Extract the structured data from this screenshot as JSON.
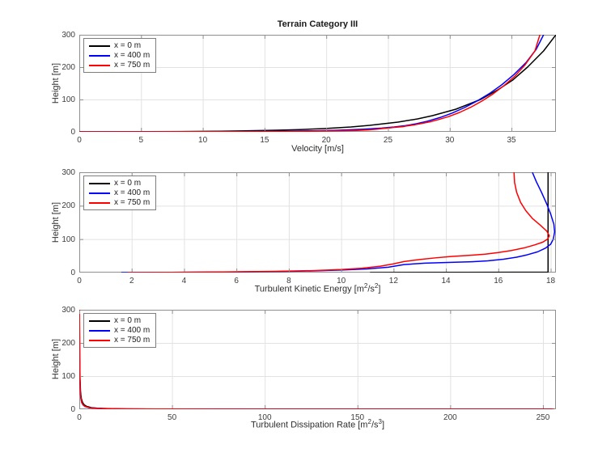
{
  "figure_title": "Terrain Category III",
  "chart_data": [
    {
      "id": "velocity-profile",
      "type": "line",
      "title": "Terrain Category III",
      "xlabel": "Velocity [m/s]",
      "ylabel": "Height [m]",
      "xlim": [
        0,
        38.6
      ],
      "ylim": [
        0,
        300
      ],
      "xticks": [
        0,
        5,
        10,
        15,
        20,
        25,
        30,
        35
      ],
      "yticks": [
        0,
        100,
        200,
        300
      ],
      "grid": true,
      "legend_position": "top-left",
      "series": [
        {
          "name": "x = 0 m",
          "color": "#000000",
          "points": [
            [
              0,
              0
            ],
            [
              2,
              0.13
            ],
            [
              5.5,
              0.5
            ],
            [
              8.2,
              1
            ],
            [
              11.4,
              2
            ],
            [
              13.4,
              3
            ],
            [
              16,
              5
            ],
            [
              17.8,
              7
            ],
            [
              19.8,
              10
            ],
            [
              22,
              15
            ],
            [
              23.5,
              20
            ],
            [
              25.8,
              30
            ],
            [
              27.4,
              40
            ],
            [
              28.6,
              50
            ],
            [
              30.5,
              70
            ],
            [
              32.5,
              100
            ],
            [
              33.9,
              130
            ],
            [
              35.1,
              160
            ],
            [
              36.3,
              200
            ],
            [
              37.6,
              250
            ],
            [
              38.6,
              300
            ]
          ]
        },
        {
          "name": "x = 400 m",
          "color": "#0000ff",
          "points": [
            [
              0,
              0
            ],
            [
              6,
              0.2
            ],
            [
              12,
              0.8
            ],
            [
              16,
              1.8
            ],
            [
              19,
              3.2
            ],
            [
              21,
              5
            ],
            [
              23,
              8
            ],
            [
              24.5,
              11.5
            ],
            [
              25.5,
              15
            ],
            [
              26.4,
              19
            ],
            [
              27.3,
              25
            ],
            [
              28.2,
              33
            ],
            [
              29.2,
              44
            ],
            [
              30.2,
              58
            ],
            [
              31.2,
              75
            ],
            [
              32.2,
              95
            ],
            [
              33.2,
              118
            ],
            [
              34.2,
              145
            ],
            [
              35.2,
              177
            ],
            [
              36.2,
              215
            ],
            [
              37.0,
              255
            ],
            [
              37.6,
              300
            ]
          ]
        },
        {
          "name": "x = 750 m",
          "color": "#ff0000",
          "points": [
            [
              0,
              0
            ],
            [
              7,
              0.2
            ],
            [
              14,
              0.8
            ],
            [
              18,
              1.6
            ],
            [
              21,
              3
            ],
            [
              22.5,
              4.5
            ],
            [
              23.4,
              6
            ],
            [
              24.1,
              8
            ],
            [
              24.5,
              10
            ],
            [
              25.1,
              12
            ],
            [
              25.4,
              13.5
            ],
            [
              26.2,
              16
            ],
            [
              26.5,
              18
            ],
            [
              27.2,
              22
            ],
            [
              27.6,
              25
            ],
            [
              28.4,
              31
            ],
            [
              29.1,
              38
            ],
            [
              29.9,
              47
            ],
            [
              30.8,
              60
            ],
            [
              31.7,
              76
            ],
            [
              32.6,
              95
            ],
            [
              33.5,
              117
            ],
            [
              34.4,
              143
            ],
            [
              35.3,
              173
            ],
            [
              36.1,
              207
            ],
            [
              36.9,
              250
            ],
            [
              37.3,
              300
            ]
          ]
        }
      ]
    },
    {
      "id": "turbulent-kinetic-energy-profile",
      "type": "line",
      "title": "",
      "xlabel": "Turbulent Kinetic Energy [m^2/s^2]",
      "ylabel": "Height [m]",
      "xlim": [
        0,
        18.2
      ],
      "ylim": [
        0,
        300
      ],
      "xticks": [
        0,
        2,
        4,
        6,
        8,
        10,
        12,
        14,
        16,
        18
      ],
      "yticks": [
        0,
        100,
        200,
        300
      ],
      "grid": true,
      "legend_position": "top-left",
      "series": [
        {
          "name": "x = 0 m",
          "color": "#000000",
          "points": [
            [
              11.1,
              0
            ],
            [
              17.9,
              1.2
            ],
            [
              17.9,
              300
            ]
          ]
        },
        {
          "name": "x = 400 m",
          "color": "#0000ff",
          "points": [
            [
              1.6,
              0
            ],
            [
              3.5,
              0.6
            ],
            [
              5.5,
              1.5
            ],
            [
              7.5,
              3
            ],
            [
              9,
              5
            ],
            [
              10,
              7.5
            ],
            [
              11,
              11
            ],
            [
              11.8,
              16
            ],
            [
              12.4,
              24
            ],
            [
              13.2,
              28
            ],
            [
              14.2,
              30.5
            ],
            [
              15.0,
              32.5
            ],
            [
              15.6,
              35
            ],
            [
              16.2,
              40
            ],
            [
              16.7,
              46
            ],
            [
              17.1,
              53
            ],
            [
              17.5,
              62
            ],
            [
              17.8,
              73
            ],
            [
              18.0,
              85
            ],
            [
              18.1,
              100
            ],
            [
              18.15,
              122
            ],
            [
              18.12,
              145
            ],
            [
              18.0,
              175
            ],
            [
              17.85,
              205
            ],
            [
              17.65,
              240
            ],
            [
              17.45,
              272
            ],
            [
              17.3,
              300
            ]
          ]
        },
        {
          "name": "x = 750 m",
          "color": "#ff0000",
          "points": [
            [
              1.85,
              0
            ],
            [
              3.5,
              0.7
            ],
            [
              5.5,
              1.8
            ],
            [
              7.5,
              3.5
            ],
            [
              9,
              6
            ],
            [
              10,
              9
            ],
            [
              10.8,
              13
            ],
            [
              11.5,
              19
            ],
            [
              12.0,
              26
            ],
            [
              12.4,
              33
            ],
            [
              13.0,
              39
            ],
            [
              13.6,
              44
            ],
            [
              14.2,
              48
            ],
            [
              15.0,
              52
            ],
            [
              15.5,
              55
            ],
            [
              16.0,
              60
            ],
            [
              16.5,
              66
            ],
            [
              17.0,
              74
            ],
            [
              17.4,
              83
            ],
            [
              17.7,
              91
            ],
            [
              17.88,
              100
            ],
            [
              17.95,
              110
            ],
            [
              17.85,
              124
            ],
            [
              17.6,
              142
            ],
            [
              17.3,
              162
            ],
            [
              17.05,
              185
            ],
            [
              16.85,
              210
            ],
            [
              16.7,
              240
            ],
            [
              16.62,
              270
            ],
            [
              16.6,
              300
            ]
          ]
        }
      ]
    },
    {
      "id": "turbulent-dissipation-rate-profile",
      "type": "line",
      "title": "",
      "xlabel": "Turbulent Dissipation Rate [m^2/s^3]",
      "ylabel": "Height [m]",
      "xlim": [
        0,
        257
      ],
      "ylim": [
        0,
        300
      ],
      "xticks": [
        0,
        50,
        100,
        150,
        200,
        250
      ],
      "yticks": [
        0,
        100,
        200,
        300
      ],
      "grid": true,
      "legend_position": "top-left",
      "series": [
        {
          "name": "x = 0 m",
          "color": "#000000",
          "points": [
            [
              255,
              0
            ],
            [
              100,
              0.15
            ],
            [
              48,
              0.45
            ],
            [
              26,
              1
            ],
            [
              15,
              2
            ],
            [
              10,
              3
            ],
            [
              6.5,
              5
            ],
            [
              4,
              8.5
            ],
            [
              2.7,
              13
            ],
            [
              1.8,
              20
            ],
            [
              1.1,
              32
            ],
            [
              0.65,
              55
            ],
            [
              0.38,
              95
            ],
            [
              0.22,
              160
            ],
            [
              0.12,
              260
            ],
            [
              0.1,
              300
            ]
          ]
        },
        {
          "name": "x = 400 m",
          "color": "#0000ff",
          "points": [
            [
              255,
              0
            ],
            [
              90,
              0.15
            ],
            [
              40,
              0.5
            ],
            [
              22,
              1
            ],
            [
              12,
              2
            ],
            [
              8,
              3
            ],
            [
              5,
              5
            ],
            [
              3,
              8.5
            ],
            [
              2,
              13
            ],
            [
              1.3,
              20
            ],
            [
              0.85,
              32
            ],
            [
              0.5,
              55
            ],
            [
              0.3,
              95
            ],
            [
              0.18,
              160
            ],
            [
              0.1,
              260
            ],
            [
              0.09,
              300
            ]
          ]
        },
        {
          "name": "x = 750 m",
          "color": "#ff0000",
          "points": [
            [
              256,
              0
            ],
            [
              95,
              0.15
            ],
            [
              42,
              0.5
            ],
            [
              23,
              1
            ],
            [
              12.5,
              2
            ],
            [
              8.3,
              3
            ],
            [
              5.2,
              5
            ],
            [
              3.1,
              8.5
            ],
            [
              2.1,
              13
            ],
            [
              1.35,
              20
            ],
            [
              0.9,
              32
            ],
            [
              0.55,
              55
            ],
            [
              0.32,
              95
            ],
            [
              0.19,
              160
            ],
            [
              0.11,
              260
            ],
            [
              0.1,
              300
            ]
          ]
        }
      ]
    }
  ],
  "legend": {
    "items": [
      {
        "label": "x = 0 m",
        "color": "#000000"
      },
      {
        "label": "x = 400 m",
        "color": "#0000ff"
      },
      {
        "label": "x = 750 m",
        "color": "#ff0000"
      }
    ]
  },
  "style_colors": {
    "grid": "#e2e2e2",
    "frame": "#8f8f8f",
    "tick": "#8f8f8f",
    "tick_text": "#3d3d3d",
    "label_text": "#2e2e2e",
    "title_text": "#1a1a1a",
    "background": "#ffffff"
  }
}
